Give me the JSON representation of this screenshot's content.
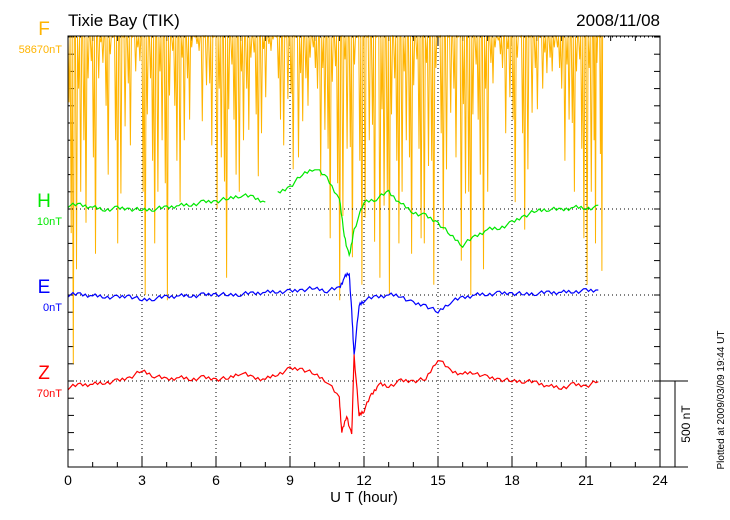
{
  "chart_data": {
    "type": "line",
    "title": "Tixie Bay (TIK)",
    "date": "2008/11/08",
    "xlabel": "U T (hour)",
    "xlim": [
      0,
      24
    ],
    "xticks": [
      "0",
      "3",
      "6",
      "9",
      "12",
      "15",
      "18",
      "21",
      "24"
    ],
    "scale_bar": "500 nT",
    "plotted_note": "Plotted at 2009/03/09 19:44 UT",
    "series": [
      {
        "name": "F",
        "baseline_label": "58670nT",
        "color": "#ffb400",
        "offset_nT": 1500,
        "spikes": [
          [
            0.0,
            -1900,
            400
          ],
          [
            0.3,
            -1500,
            300
          ],
          [
            0.6,
            -1200,
            500
          ],
          [
            0.9,
            -1400,
            200
          ],
          [
            1.2,
            -300,
            100
          ],
          [
            1.5,
            -1000,
            400
          ],
          [
            1.8,
            -1500,
            500
          ],
          [
            2.1,
            -1300,
            450
          ],
          [
            2.4,
            -900,
            300
          ],
          [
            2.7,
            -200,
            100
          ],
          [
            3.0,
            -1500,
            500
          ],
          [
            3.3,
            -1200,
            500
          ],
          [
            3.6,
            -1000,
            450
          ],
          [
            3.9,
            -1700,
            400
          ],
          [
            4.2,
            -800,
            500
          ],
          [
            4.5,
            -1200,
            500
          ],
          [
            4.8,
            -600,
            300
          ],
          [
            5.1,
            -100,
            50
          ],
          [
            5.4,
            -700,
            300
          ],
          [
            5.7,
            -900,
            400
          ],
          [
            6.0,
            -1000,
            500
          ],
          [
            6.3,
            -1400,
            450
          ],
          [
            6.6,
            -800,
            500
          ],
          [
            6.9,
            -1000,
            400
          ],
          [
            7.2,
            -600,
            350
          ],
          [
            7.5,
            -900,
            500
          ],
          [
            7.8,
            -700,
            300
          ],
          [
            8.1,
            -100,
            50
          ],
          [
            8.4,
            -600,
            250
          ],
          [
            8.7,
            -900,
            500
          ],
          [
            9.0,
            -1100,
            450
          ],
          [
            9.3,
            -700,
            400
          ],
          [
            9.6,
            -400,
            100
          ],
          [
            9.9,
            -300,
            250
          ],
          [
            10.2,
            -900,
            350
          ],
          [
            10.5,
            -1300,
            400
          ],
          [
            10.8,
            -1700,
            350
          ],
          [
            11.1,
            -1300,
            500
          ],
          [
            11.4,
            -1600,
            400
          ],
          [
            11.7,
            -1800,
            450
          ],
          [
            12.0,
            -1500,
            500
          ],
          [
            12.3,
            -1700,
            350
          ],
          [
            12.6,
            -1400,
            450
          ],
          [
            12.9,
            -1500,
            450
          ],
          [
            13.2,
            -1200,
            400
          ],
          [
            13.5,
            -1000,
            300
          ],
          [
            13.8,
            -1400,
            350
          ],
          [
            14.1,
            -1300,
            400
          ],
          [
            14.4,
            -1500,
            350
          ],
          [
            14.7,
            -1800,
            200
          ],
          [
            15.0,
            -1400,
            450
          ],
          [
            15.3,
            -1100,
            500
          ],
          [
            15.6,
            -1000,
            500
          ],
          [
            15.9,
            -1300,
            500
          ],
          [
            16.2,
            -1500,
            400
          ],
          [
            16.5,
            -800,
            200
          ],
          [
            16.8,
            -1500,
            300
          ],
          [
            17.1,
            -300,
            100
          ],
          [
            17.4,
            -200,
            80
          ],
          [
            17.7,
            -700,
            250
          ],
          [
            18.0,
            -1200,
            350
          ],
          [
            18.3,
            -1400,
            450
          ],
          [
            18.6,
            -1100,
            400
          ],
          [
            18.9,
            -600,
            350
          ],
          [
            19.2,
            -300,
            200
          ],
          [
            19.5,
            -200,
            100
          ],
          [
            19.8,
            -300,
            150
          ],
          [
            20.1,
            -800,
            250
          ],
          [
            20.4,
            -1000,
            350
          ],
          [
            20.7,
            -1300,
            400
          ],
          [
            21.0,
            -1800,
            450
          ],
          [
            21.3,
            -1500,
            450
          ],
          [
            21.5,
            -1700,
            300
          ]
        ]
      },
      {
        "name": "H",
        "baseline_label": "10nT",
        "color": "#00e800",
        "offset_nT": 500,
        "t": [
          0,
          0.5,
          1,
          1.5,
          2,
          2.5,
          3,
          3.5,
          4,
          4.5,
          5,
          5.5,
          6,
          6.5,
          7,
          7.5,
          8,
          8.2,
          8.5,
          9,
          9.5,
          10,
          10.5,
          11,
          11.2,
          11.4,
          11.6,
          12,
          12.5,
          13,
          13.5,
          14,
          14.5,
          15,
          15.5,
          16,
          16.5,
          17,
          17.5,
          18,
          18.5,
          19,
          19.5,
          20,
          20.5,
          21,
          21.5
        ],
        "v": [
          20,
          25,
          10,
          -5,
          5,
          0,
          -5,
          0,
          10,
          20,
          25,
          40,
          45,
          60,
          80,
          70,
          40,
          null,
          90,
          130,
          200,
          240,
          180,
          60,
          -150,
          -280,
          -120,
          40,
          60,
          100,
          30,
          -20,
          -40,
          -80,
          -150,
          -210,
          -160,
          -120,
          -110,
          -80,
          -40,
          -10,
          0,
          -5,
          10,
          5,
          10
        ]
      },
      {
        "name": "E",
        "baseline_label": "0nT",
        "color": "#0000ff",
        "offset_nT": 0,
        "t": [
          0,
          0.5,
          1,
          1.5,
          2,
          2.5,
          3,
          3.5,
          4,
          4.5,
          5,
          5.5,
          6,
          6.5,
          7,
          7.5,
          8,
          8.5,
          9,
          9.5,
          10,
          10.5,
          11,
          11.2,
          11.4,
          11.5,
          11.6,
          11.8,
          12,
          12.5,
          13,
          13.5,
          14,
          14.5,
          15,
          15.5,
          16,
          16.5,
          17,
          17.5,
          18,
          18.5,
          19,
          19.5,
          20,
          20.5,
          21,
          21.5
        ],
        "v": [
          0,
          5,
          -5,
          -10,
          -15,
          -5,
          -30,
          -20,
          -10,
          -5,
          -5,
          0,
          5,
          0,
          5,
          10,
          15,
          20,
          20,
          30,
          40,
          25,
          40,
          100,
          130,
          -100,
          -350,
          -60,
          -30,
          -10,
          0,
          -5,
          -50,
          -60,
          -100,
          -40,
          -15,
          0,
          5,
          10,
          10,
          5,
          10,
          15,
          15,
          20,
          25,
          25
        ]
      },
      {
        "name": "Z",
        "baseline_label": "70nT",
        "color": "#ff0000",
        "offset_nT": -500,
        "t": [
          0,
          0.5,
          1,
          1.5,
          2,
          2.5,
          3,
          3.5,
          4,
          4.5,
          5,
          5.5,
          6,
          6.5,
          7,
          7.5,
          8,
          8.5,
          9,
          9.5,
          10,
          10.5,
          11,
          11.1,
          11.3,
          11.5,
          11.6,
          11.8,
          12,
          12.3,
          12.6,
          13,
          13.5,
          14,
          14.5,
          15,
          15.5,
          16,
          16.5,
          17,
          17.5,
          18,
          18.5,
          19,
          19.5,
          20,
          20.5,
          21,
          21.5
        ],
        "v": [
          -40,
          -20,
          -20,
          -10,
          0,
          20,
          60,
          30,
          10,
          20,
          10,
          20,
          10,
          15,
          50,
          20,
          10,
          40,
          70,
          70,
          40,
          0,
          -100,
          -300,
          -200,
          -320,
          150,
          -200,
          -170,
          -80,
          -20,
          -30,
          0,
          0,
          10,
          130,
          60,
          40,
          50,
          20,
          10,
          0,
          0,
          -10,
          -30,
          -40,
          -20,
          -30,
          0
        ]
      }
    ]
  }
}
